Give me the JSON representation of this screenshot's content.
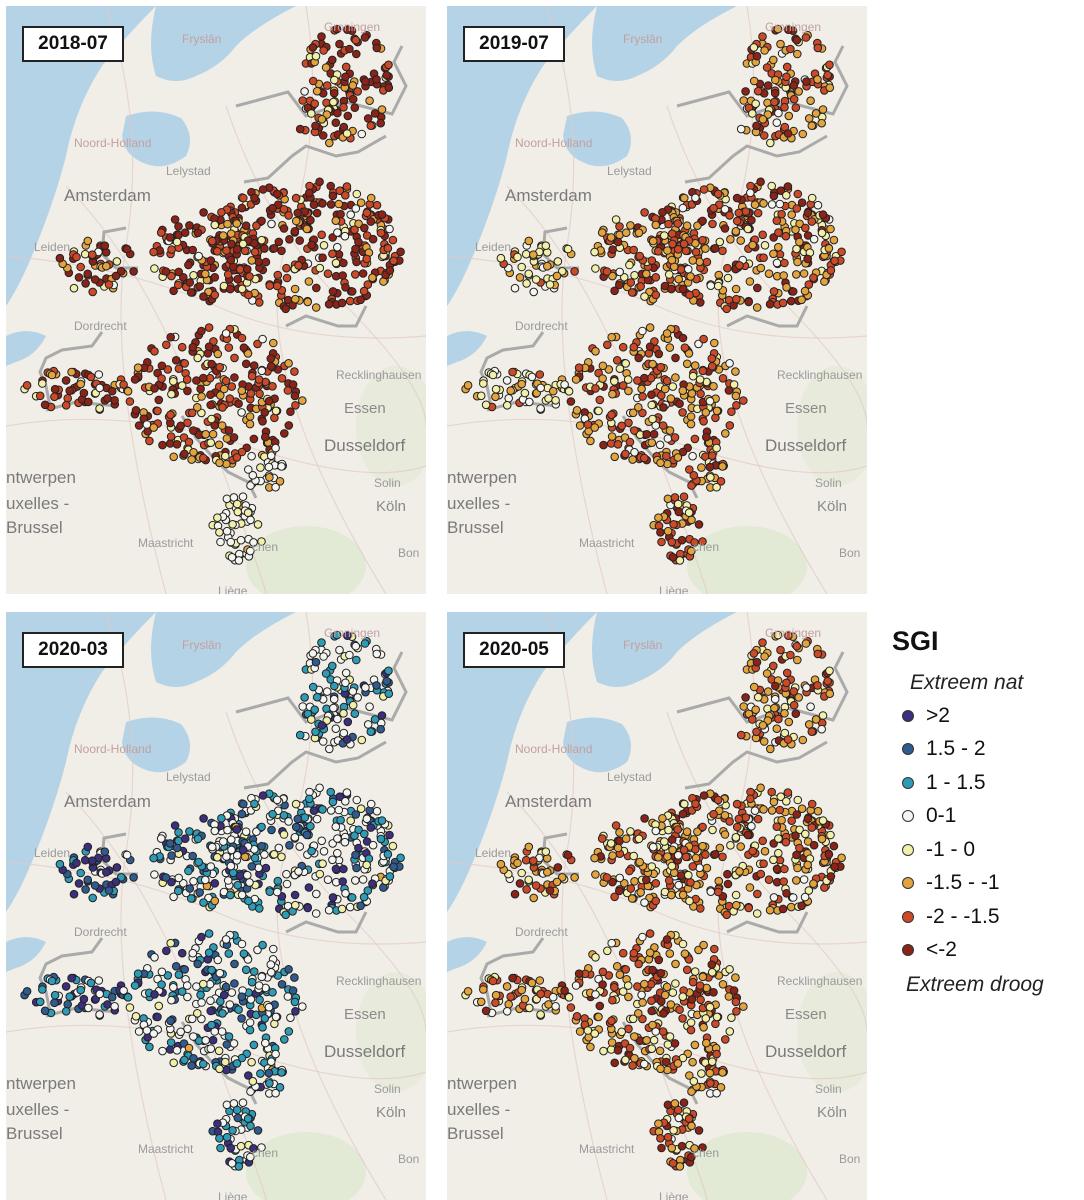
{
  "panels": [
    {
      "date": "2018-07",
      "palette": [
        0.0,
        0.0,
        0.0,
        0.04,
        0.08,
        0.16,
        0.3,
        0.42
      ],
      "extras": [
        {
          "region": "limburg",
          "palette": [
            0.0,
            0.0,
            0.0,
            0.7,
            0.22,
            0.08,
            0.0,
            0.0
          ]
        }
      ]
    },
    {
      "date": "2019-07",
      "palette": [
        0.0,
        0.0,
        0.0,
        0.05,
        0.1,
        0.3,
        0.35,
        0.2
      ],
      "extras": [
        {
          "region": "west",
          "palette": [
            0.0,
            0.0,
            0.0,
            0.25,
            0.35,
            0.3,
            0.1,
            0.0
          ]
        }
      ]
    },
    {
      "date": "2020-03",
      "palette": [
        0.1,
        0.12,
        0.28,
        0.42,
        0.06,
        0.02,
        0.0,
        0.0
      ],
      "extras": [
        {
          "region": "west",
          "palette": [
            0.35,
            0.25,
            0.25,
            0.15,
            0.0,
            0.0,
            0.0,
            0.0
          ]
        }
      ]
    },
    {
      "date": "2020-05",
      "palette": [
        0.0,
        0.0,
        0.0,
        0.08,
        0.18,
        0.3,
        0.3,
        0.14
      ],
      "extras": []
    }
  ],
  "place_labels": {
    "amsterdam": "Amsterdam",
    "leiden": "Leiden",
    "lelystad": "Lelystad",
    "noord_holland": "Noord-Holland",
    "dordrecht": "Dordrecht",
    "recklinghausen": "Recklinghausen",
    "essen": "Essen",
    "dusseldorf": "Dusseldorf",
    "antwerpen": "ntwerpen",
    "bruxelles": "uxelles -",
    "brussel": "Brussel",
    "maastricht": "Maastricht",
    "aachen": "chen",
    "koln": "Köln",
    "solingen": "Solin",
    "bonn": "Bon",
    "liege": "Liège",
    "groningen": "Groningen",
    "fryslan": "Fryslân"
  },
  "legend": {
    "title": "SGI",
    "top_note": "Extreem nat",
    "bottom_note": "Extreem droog",
    "classes": [
      {
        "label": ">2",
        "color": "#3b2f7e"
      },
      {
        "label": "1.5 - 2",
        "color": "#2f5b8e"
      },
      {
        "label": "1 - 1.5",
        "color": "#2e9bb7"
      },
      {
        "label": "0-1",
        "color": "#f4f4f1"
      },
      {
        "label": "-1 - 0",
        "color": "#f1efa9"
      },
      {
        "label": "-1.5 - -1",
        "color": "#e3a33d"
      },
      {
        "label": "-2 - -1.5",
        "color": "#cd4a28"
      },
      {
        "label": "<-2",
        "color": "#8c2318"
      }
    ]
  },
  "colors": {
    "land": "#f1eee8",
    "water": "#b5d3e7",
    "border": "#aaaaaa",
    "green": "#dfe7cf"
  }
}
